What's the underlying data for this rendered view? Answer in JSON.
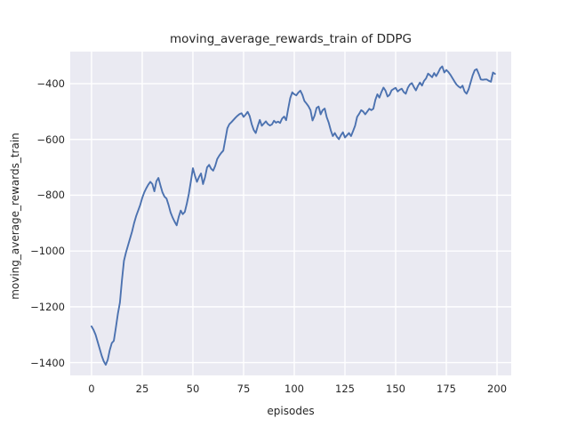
{
  "figure": {
    "background": "#ffffff",
    "plot_background": "#eaeaf2",
    "grid_color": "#ffffff",
    "text_color": "#262626"
  },
  "chart_data": {
    "type": "line",
    "title": "moving_average_rewards_train of DDPG",
    "xlabel": "episodes",
    "ylabel": "moving_average_rewards_train",
    "legend": "none",
    "grid": true,
    "line_color": "#4c72b0",
    "line_width": 1.9,
    "x_ticks": [
      0,
      25,
      50,
      75,
      100,
      125,
      150,
      175,
      200
    ],
    "x_tick_labels": [
      "0",
      "25",
      "50",
      "75",
      "100",
      "125",
      "150",
      "175",
      "200"
    ],
    "y_ticks": [
      -400,
      -600,
      -800,
      -1000,
      -1200,
      -1400
    ],
    "y_tick_labels": [
      "−400",
      "−600",
      "−800",
      "−1000",
      "−1200",
      "−1400"
    ],
    "xlim": [
      -10.5,
      207.0
    ],
    "ylim": [
      -1446,
      -285
    ],
    "x_start": 0,
    "x_step": 1,
    "x_range": [
      0,
      199
    ],
    "y": [
      -1270,
      -1283,
      -1300,
      -1325,
      -1350,
      -1375,
      -1395,
      -1408,
      -1390,
      -1355,
      -1330,
      -1322,
      -1275,
      -1225,
      -1185,
      -1105,
      -1035,
      -1005,
      -980,
      -955,
      -930,
      -900,
      -875,
      -855,
      -835,
      -810,
      -790,
      -775,
      -762,
      -752,
      -760,
      -786,
      -750,
      -738,
      -765,
      -790,
      -805,
      -812,
      -835,
      -862,
      -880,
      -895,
      -908,
      -878,
      -855,
      -868,
      -860,
      -830,
      -795,
      -750,
      -703,
      -730,
      -752,
      -735,
      -722,
      -760,
      -735,
      -700,
      -691,
      -705,
      -712,
      -695,
      -670,
      -658,
      -648,
      -640,
      -600,
      -560,
      -545,
      -538,
      -530,
      -522,
      -515,
      -509,
      -506,
      -519,
      -511,
      -501,
      -516,
      -545,
      -566,
      -577,
      -552,
      -530,
      -551,
      -543,
      -535,
      -545,
      -550,
      -546,
      -533,
      -540,
      -536,
      -541,
      -525,
      -518,
      -531,
      -490,
      -452,
      -431,
      -438,
      -442,
      -432,
      -425,
      -440,
      -462,
      -471,
      -481,
      -495,
      -532,
      -515,
      -487,
      -482,
      -510,
      -495,
      -489,
      -520,
      -540,
      -567,
      -588,
      -577,
      -590,
      -599,
      -585,
      -574,
      -593,
      -585,
      -577,
      -588,
      -570,
      -551,
      -519,
      -508,
      -495,
      -500,
      -510,
      -500,
      -490,
      -495,
      -490,
      -458,
      -438,
      -450,
      -430,
      -414,
      -425,
      -446,
      -440,
      -424,
      -419,
      -415,
      -428,
      -422,
      -418,
      -430,
      -436,
      -415,
      -403,
      -398,
      -412,
      -424,
      -408,
      -396,
      -407,
      -390,
      -381,
      -364,
      -370,
      -377,
      -362,
      -373,
      -360,
      -345,
      -338,
      -360,
      -351,
      -358,
      -368,
      -380,
      -392,
      -403,
      -410,
      -415,
      -407,
      -428,
      -436,
      -420,
      -395,
      -370,
      -352,
      -348,
      -365,
      -385,
      -386,
      -385,
      -385,
      -390,
      -393,
      -360,
      -365
    ]
  }
}
